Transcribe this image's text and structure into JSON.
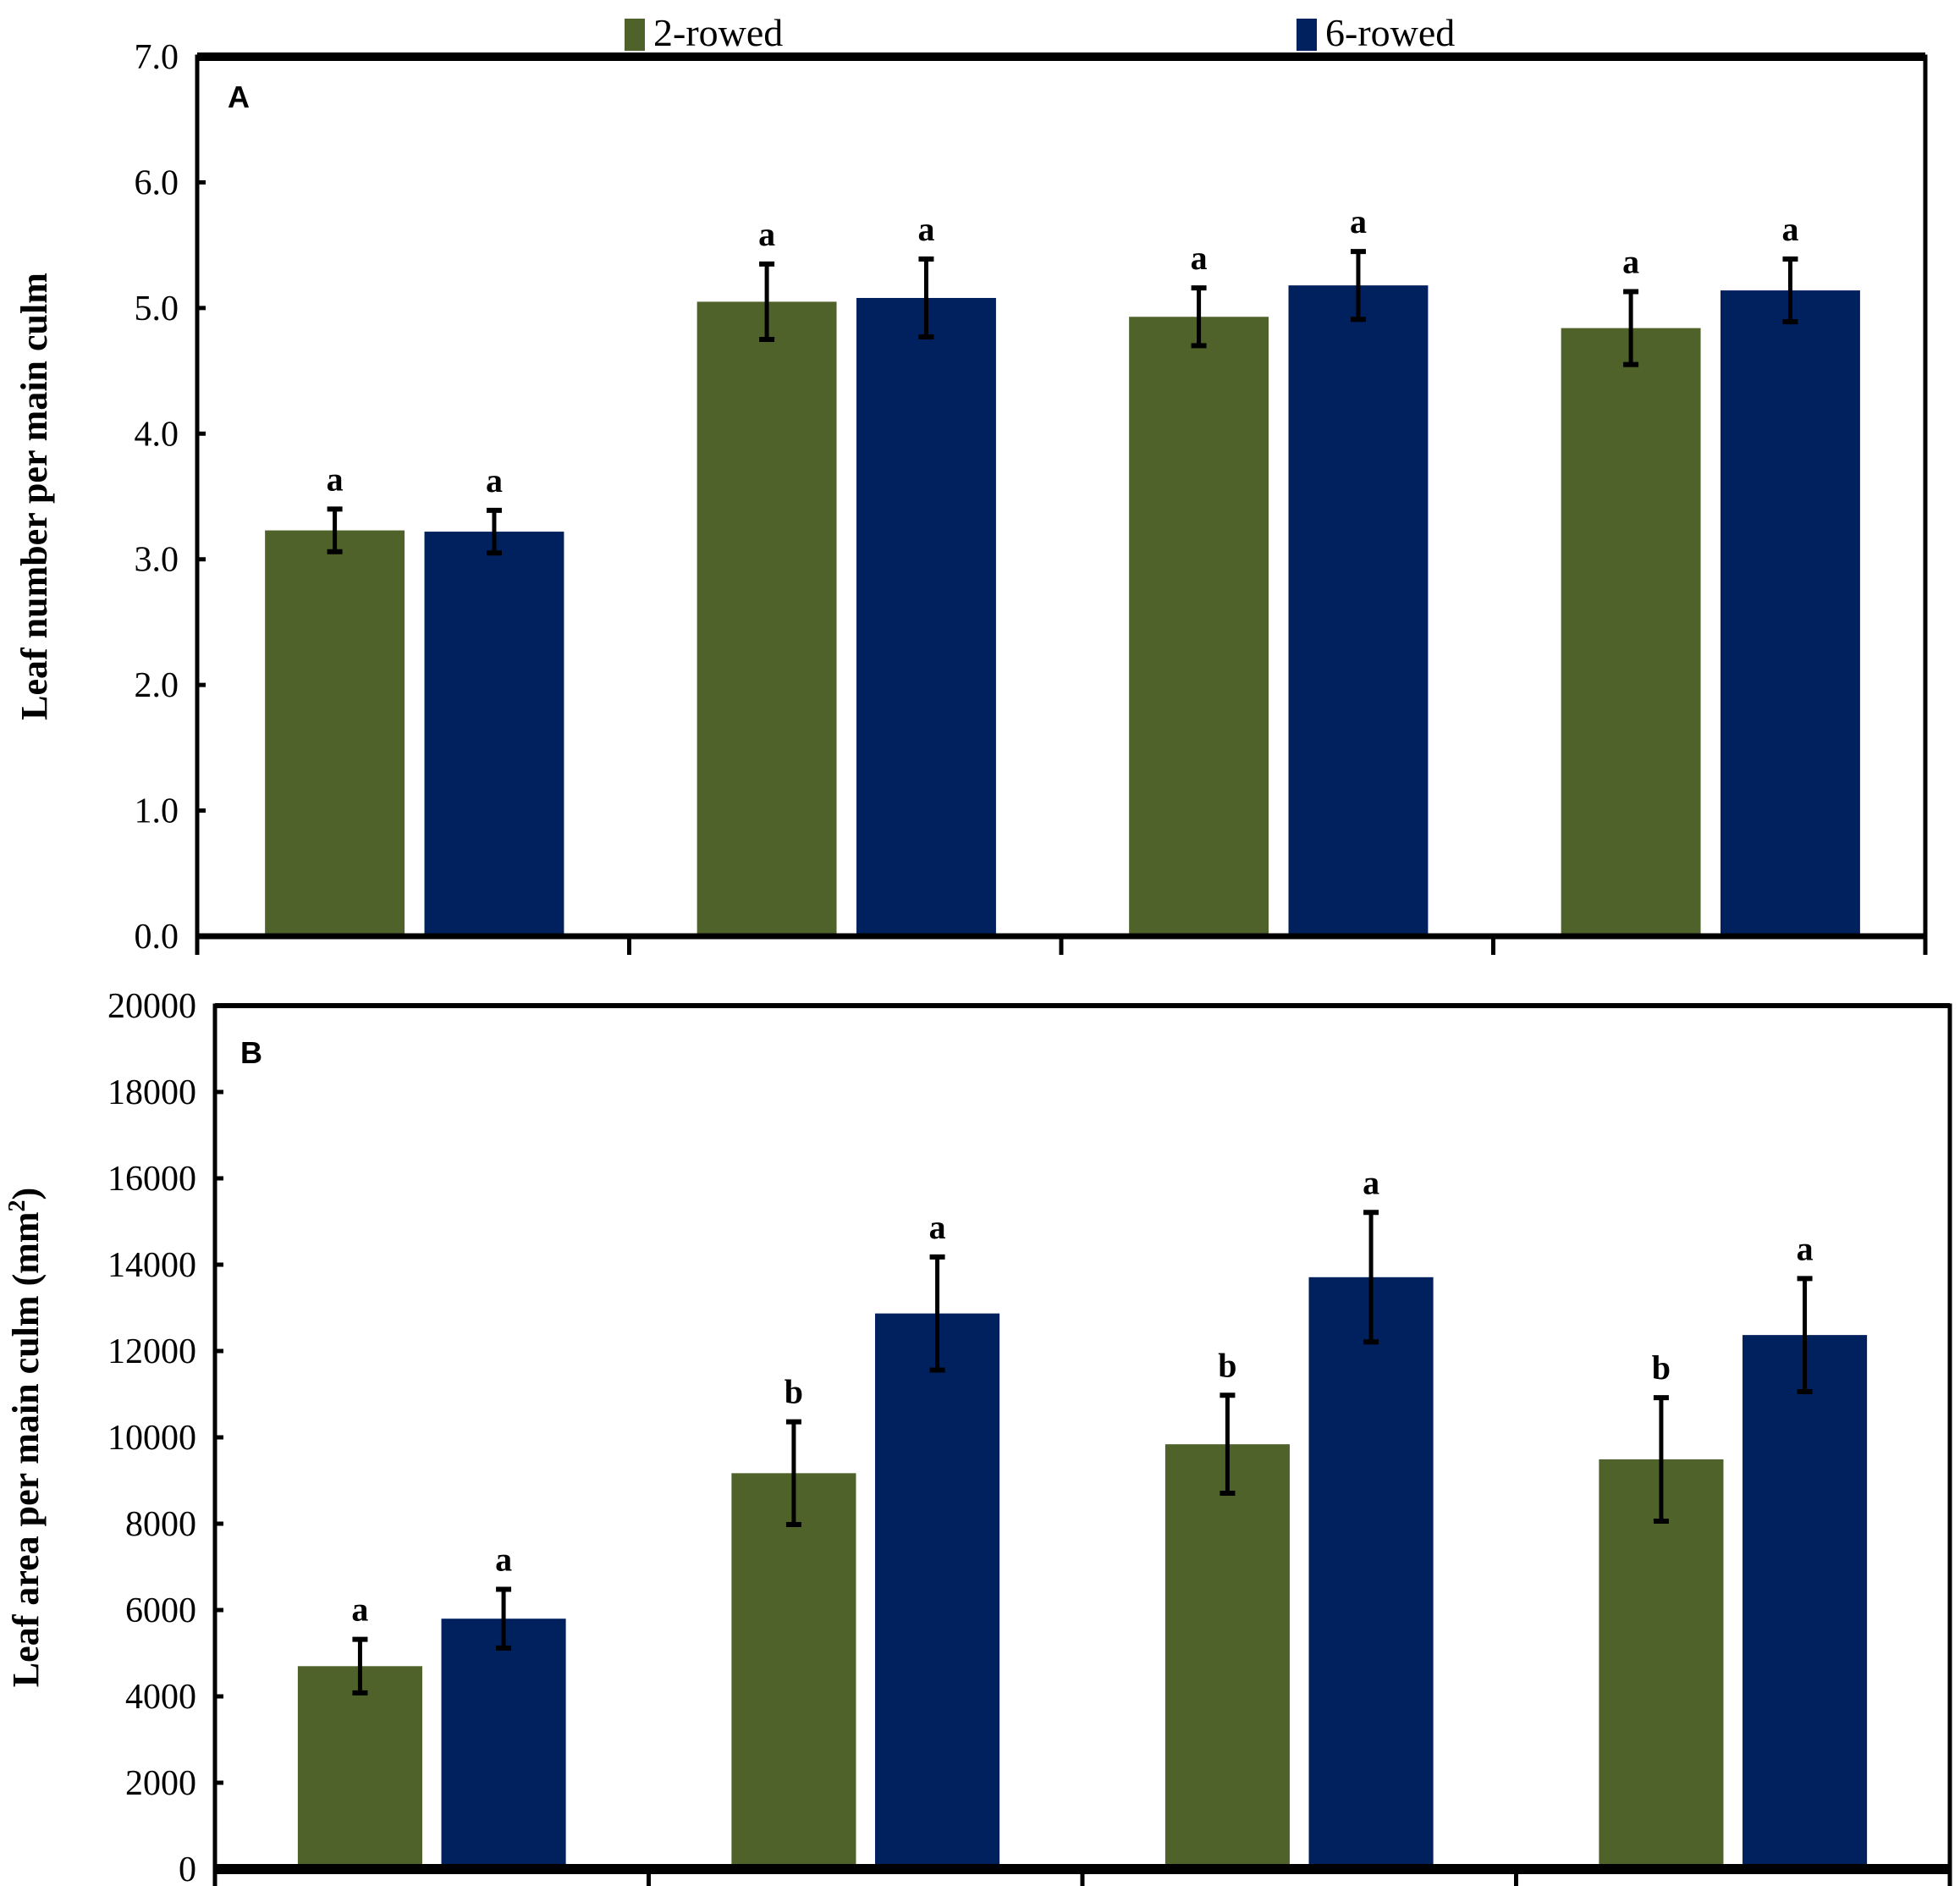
{
  "chart_data": {
    "legend": {
      "placement": "top",
      "entries": [
        {
          "label": "2-rowed",
          "color": "#4f622a"
        },
        {
          "label": "6-rowed",
          "color": "#00205e"
        }
      ]
    },
    "panels": [
      {
        "type": "bar",
        "panel_label": "A",
        "ylabel": "Leaf number per main culm",
        "ylim": [
          0,
          7
        ],
        "yticks": [
          "0.0",
          "1.0",
          "2.0",
          "3.0",
          "4.0",
          "5.0",
          "6.0",
          "7.0"
        ],
        "categories": [
          "",
          "",
          "",
          ""
        ],
        "series": [
          {
            "name": "2-rowed",
            "values": [
              3.23,
              5.05,
              4.93,
              4.84
            ],
            "errors": [
              0.17,
              0.3,
              0.23,
              0.29
            ],
            "letters": [
              "a",
              "a",
              "a",
              "a"
            ]
          },
          {
            "name": "6-rowed",
            "values": [
              3.22,
              5.08,
              5.18,
              5.14
            ],
            "errors": [
              0.17,
              0.31,
              0.27,
              0.25
            ],
            "letters": [
              "a",
              "a",
              "a",
              "a"
            ]
          }
        ]
      },
      {
        "type": "bar",
        "panel_label": "B",
        "ylabel": "Leaf area per main culm (mm",
        "ylabel_sup": "2",
        "ylabel_end": ")",
        "ylim": [
          0,
          20000
        ],
        "yticks": [
          "0",
          "2000",
          "4000",
          "6000",
          "8000",
          "10000",
          "12000",
          "14000",
          "16000",
          "18000",
          "20000"
        ],
        "categories": [
          "",
          "",
          "",
          ""
        ],
        "series": [
          {
            "name": "2-rowed",
            "values": [
              4700,
              9170,
              9840,
              9490
            ],
            "errors": [
              620,
              1190,
              1135,
              1430
            ],
            "letters": [
              "a",
              "b",
              "b",
              "b"
            ]
          },
          {
            "name": "6-rowed",
            "values": [
              5800,
              12870,
              13710,
              12370
            ],
            "errors": [
              680,
              1310,
              1500,
              1310
            ],
            "letters": [
              "a",
              "a",
              "a",
              "a"
            ]
          }
        ]
      }
    ]
  }
}
